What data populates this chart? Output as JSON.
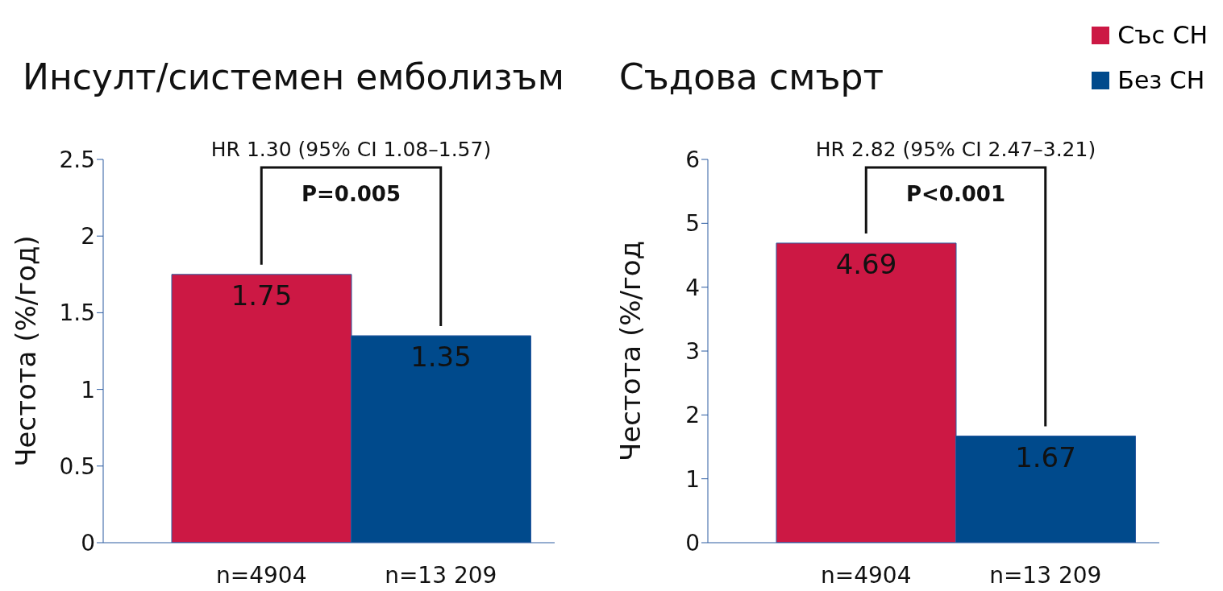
{
  "chart_data": [
    {
      "type": "bar",
      "title": "Инсулт/системен емболизъм",
      "ylabel": "Честота  (%/год)",
      "categories": [
        "n=4904",
        "n=13 209"
      ],
      "stacked": true,
      "data_labels": true,
      "ylim": [
        0,
        2.5
      ],
      "yticks": [
        0,
        0.5,
        1,
        1.5,
        2,
        2.5
      ],
      "grid": false,
      "annotations": [
        "HR 1.30 (95% CI 1.08–1.57)",
        "P=0.005"
      ],
      "series": [
        {
          "color": "#cc1844",
          "values": [
            1.75,
            null
          ]
        },
        {
          "color": "#004a8c",
          "values": [
            null,
            1.35
          ]
        }
      ]
    },
    {
      "type": "bar",
      "title": "Съдова смърт",
      "ylabel": "Честота  (%/год",
      "categories": [
        "n=4904",
        "n=13 209"
      ],
      "stacked": true,
      "data_labels": true,
      "ylim": [
        0,
        6
      ],
      "yticks": [
        0,
        1,
        2,
        3,
        4,
        5,
        6
      ],
      "grid": false,
      "legend": "top right",
      "annotations": [
        "HR 2.82 (95% CI 2.47–3.21)",
        "P<0.001"
      ],
      "series": [
        {
          "name": "Със СН",
          "color": "#cc1844",
          "values": [
            4.69,
            null
          ]
        },
        {
          "name": "Без СН",
          "color": "#004a8c",
          "values": [
            null,
            1.67
          ]
        }
      ]
    }
  ]
}
